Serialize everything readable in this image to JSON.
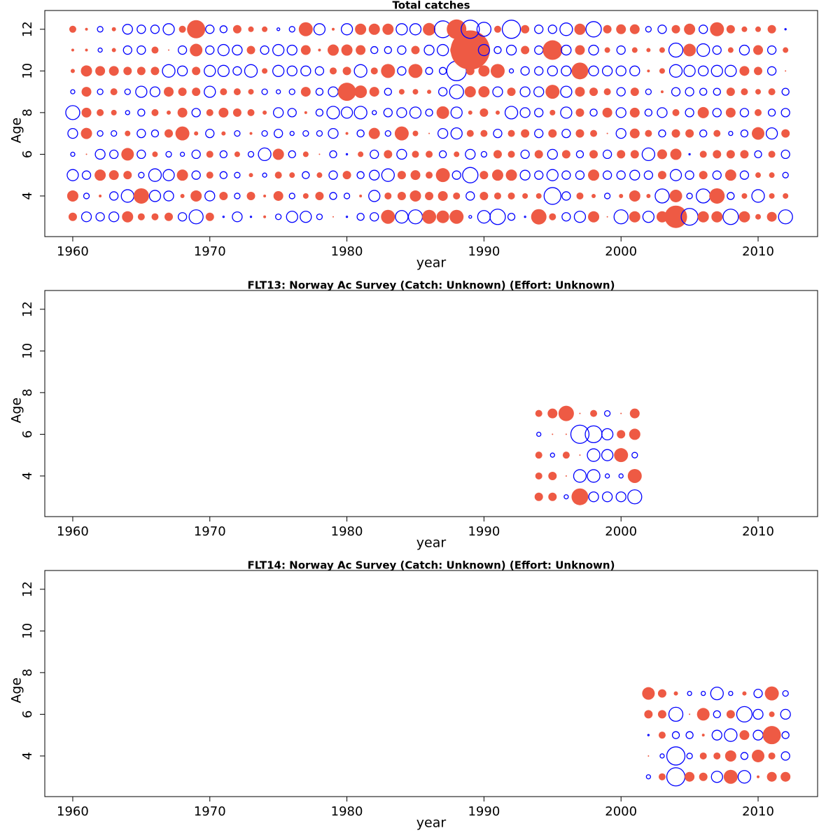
{
  "chart_data": [
    {
      "type": "bubble",
      "title": "Total catches",
      "x_label": "year",
      "y_label": "Age",
      "positive_color": "#ee5a44",
      "negative_color": "#0000ff",
      "xlim": [
        1957.96,
        2014.34
      ],
      "xticks": [
        1960,
        1970,
        1980,
        1990,
        2000,
        2010
      ],
      "ylim": [
        2.05,
        12.9
      ],
      "yticks": [
        4,
        6,
        8,
        10,
        12
      ],
      "x": [
        1960,
        1961,
        1962,
        1963,
        1964,
        1965,
        1966,
        1967,
        1968,
        1969,
        1970,
        1971,
        1972,
        1973,
        1974,
        1975,
        1976,
        1977,
        1978,
        1979,
        1980,
        1981,
        1982,
        1983,
        1984,
        1985,
        1986,
        1987,
        1988,
        1989,
        1990,
        1991,
        1992,
        1993,
        1994,
        1995,
        1996,
        1997,
        1998,
        1999,
        2000,
        2001,
        2002,
        2003,
        2004,
        2005,
        2006,
        2007,
        2008,
        2009,
        2010,
        2011,
        2012
      ],
      "y": [
        3,
        4,
        5,
        6,
        7,
        8,
        9,
        10,
        11,
        12
      ],
      "values": [
        [
          0.6,
          -0.7,
          -0.6,
          -0.7,
          0.8,
          0.5,
          0.5,
          0.6,
          -0.6,
          -1.0,
          0.6,
          -0.1,
          -0.7,
          -0.1,
          0.2,
          -0.4,
          -0.8,
          -0.8,
          -0.4,
          0.1,
          -0.1,
          -0.5,
          -0.6,
          1.0,
          -0.9,
          -1.0,
          1.0,
          0.9,
          1.0,
          -0.2,
          -0.9,
          -1.1,
          -0.5,
          -0.1,
          1.1,
          0.5,
          -0.6,
          -0.8,
          0.8,
          0.1,
          -1.0,
          0.8,
          -0.8,
          0.8,
          1.6,
          -1.2,
          0.8,
          0.8,
          -1.1,
          0.8,
          0.4,
          0.7,
          -1.0
        ],
        [
          0.8,
          -0.4,
          0.2,
          -0.6,
          -0.9,
          1.1,
          -0.8,
          -0.7,
          0.3,
          0.8,
          -0.7,
          0.6,
          -0.4,
          0.6,
          0.2,
          0.7,
          -0.4,
          0.4,
          0.6,
          -0.5,
          -0.4,
          0.2,
          -0.8,
          0.5,
          0.6,
          0.8,
          0.6,
          0.7,
          0.5,
          -0.6,
          0.6,
          0.5,
          0.5,
          0.4,
          0.4,
          -1.2,
          -0.6,
          0.5,
          0.3,
          -0.4,
          0.3,
          0.8,
          0.3,
          -1.0,
          0.9,
          -0.4,
          -1.0,
          1.1,
          -0.5,
          0.4,
          -0.9,
          0.4,
          0.4
        ],
        [
          -0.8,
          -0.6,
          0.8,
          0.7,
          0.6,
          -0.4,
          -0.9,
          -0.8,
          0.8,
          -0.6,
          0.5,
          -0.5,
          -0.4,
          0.3,
          -0.3,
          0.5,
          0.4,
          -0.5,
          0.4,
          -0.6,
          0.6,
          -0.5,
          -0.7,
          -0.9,
          0.6,
          0.7,
          0.5,
          1.0,
          -0.6,
          -1.1,
          0.6,
          0.8,
          0.8,
          -0.7,
          -0.6,
          -0.8,
          -0.6,
          -0.6,
          0.8,
          -0.6,
          -0.6,
          -0.7,
          -0.6,
          0.6,
          -0.8,
          -0.6,
          0.6,
          -0.6,
          0.8,
          -0.6,
          0.4,
          0.4,
          -0.4
        ],
        [
          -0.3,
          0.1,
          -0.7,
          -0.6,
          0.9,
          -0.6,
          0.4,
          -0.4,
          -0.3,
          -0.6,
          0.5,
          -0.5,
          0.4,
          -0.4,
          -0.9,
          0.8,
          -0.5,
          0.4,
          0.1,
          -0.5,
          -0.1,
          0.4,
          -0.6,
          0.6,
          -0.7,
          0.5,
          0.5,
          -0.5,
          0.4,
          -0.7,
          -0.4,
          0.6,
          0.5,
          -0.6,
          0.6,
          -0.7,
          0.6,
          -0.5,
          0.6,
          -0.6,
          0.6,
          0.6,
          -0.9,
          0.7,
          0.8,
          -0.1,
          0.5,
          0.6,
          0.6,
          0.6,
          -0.5,
          0.5,
          -0.6
        ],
        [
          -0.7,
          0.8,
          -0.4,
          -0.4,
          0.4,
          -0.6,
          -0.5,
          0.6,
          1.0,
          0.3,
          -0.6,
          0.3,
          -0.4,
          0.2,
          -0.4,
          -0.6,
          -0.3,
          -0.4,
          -0.4,
          -0.7,
          0.2,
          -0.5,
          0.8,
          -0.4,
          1.0,
          0.4,
          0.1,
          -0.7,
          -0.8,
          0.5,
          0.5,
          -0.6,
          0.5,
          0.6,
          -0.6,
          0.6,
          -0.6,
          0.6,
          0.5,
          0.1,
          -0.7,
          0.7,
          0.5,
          -0.5,
          0.6,
          0.6,
          -0.5,
          0.5,
          -0.3,
          -0.5,
          0.9,
          -0.8,
          0.6
        ],
        [
          -1.0,
          0.7,
          0.5,
          0.4,
          -0.3,
          -0.5,
          0.5,
          0.3,
          0.7,
          -0.6,
          0.5,
          0.7,
          0.6,
          0.5,
          0.3,
          -0.7,
          -0.6,
          0.2,
          -0.5,
          -0.9,
          -0.8,
          -0.9,
          -0.3,
          -0.6,
          -0.7,
          -0.8,
          -0.5,
          0.9,
          -0.8,
          0.3,
          0.6,
          0.3,
          -0.9,
          -0.7,
          -0.6,
          0.4,
          -0.8,
          0.6,
          -0.5,
          0.7,
          -0.7,
          0.7,
          -0.5,
          -0.7,
          0.5,
          -0.6,
          0.8,
          -0.6,
          0.7,
          -0.6,
          0.5,
          -0.5,
          -0.6
        ],
        [
          -0.3,
          0.7,
          -0.4,
          0.5,
          -0.4,
          -0.8,
          -0.7,
          0.7,
          0.6,
          0.6,
          -0.8,
          0.5,
          0.5,
          0.4,
          -0.4,
          -0.3,
          -0.4,
          0.7,
          -0.5,
          -0.7,
          1.3,
          0.9,
          0.7,
          -0.5,
          0.4,
          0.4,
          0.3,
          -0.6,
          -1.0,
          0.8,
          0.8,
          -0.7,
          0.6,
          -0.7,
          -0.7,
          1.0,
          -0.8,
          0.7,
          0.6,
          0.5,
          -0.6,
          0.6,
          -0.4,
          0.2,
          -0.6,
          -0.6,
          -0.5,
          -0.5,
          0.6,
          0.5,
          0.4,
          0.5,
          -0.5
        ],
        [
          0.3,
          0.8,
          0.7,
          0.7,
          0.6,
          0.6,
          0.6,
          -0.9,
          -0.7,
          0.6,
          -0.8,
          -0.8,
          -0.6,
          -0.9,
          0.4,
          -0.8,
          -0.7,
          -0.7,
          -0.6,
          0.5,
          0.6,
          -0.9,
          0.5,
          1.0,
          -0.6,
          1.0,
          -0.5,
          -0.5,
          -1.4,
          0.6,
          0.8,
          1.0,
          -0.3,
          -0.6,
          -0.6,
          -0.7,
          -0.7,
          1.2,
          -0.7,
          -0.7,
          -0.7,
          -0.7,
          0.2,
          0.4,
          -0.9,
          -0.8,
          -0.7,
          -0.8,
          -0.8,
          0.7,
          0.6,
          -0.6,
          0.1
        ],
        [
          0.2,
          0.2,
          -0.3,
          0.3,
          -0.6,
          -0.6,
          0.5,
          0.1,
          -0.6,
          0.9,
          -0.6,
          -0.8,
          -0.7,
          0.6,
          -0.6,
          -0.8,
          -0.7,
          0.7,
          0.2,
          0.8,
          0.8,
          0.7,
          -0.5,
          -0.5,
          -0.6,
          0.6,
          -0.7,
          -0.8,
          0.9,
          2.8,
          -0.8,
          -0.5,
          -0.7,
          0.6,
          -0.6,
          1.4,
          -0.7,
          0.7,
          -0.7,
          0.4,
          -0.6,
          0.4,
          0.3,
          0.4,
          -1.0,
          0.9,
          -0.9,
          -0.6,
          0.4,
          -0.7,
          0.7,
          -0.6,
          0.4
        ],
        [
          0.5,
          0.2,
          -0.4,
          0.3,
          -0.7,
          -0.6,
          -0.6,
          -0.8,
          0.5,
          1.3,
          -0.6,
          -0.5,
          0.6,
          0.4,
          0.4,
          -0.2,
          -0.4,
          1.0,
          -0.8,
          0.2,
          -0.8,
          0.8,
          0.8,
          0.8,
          -0.8,
          -0.8,
          0.9,
          -1.2,
          1.4,
          -1.3,
          -1.0,
          0.5,
          -1.3,
          0.6,
          -0.6,
          -0.6,
          -0.9,
          0.8,
          -1.1,
          0.6,
          0.7,
          0.7,
          -0.4,
          -0.6,
          0.6,
          0.8,
          -0.6,
          1.0,
          0.6,
          0.4,
          0.4,
          0.6,
          -0.1
        ]
      ]
    },
    {
      "type": "bubble",
      "title": "FLT13: Norway Ac Survey (Catch: Unknown) (Effort: Unknown)",
      "x_label": "year",
      "y_label": "Age",
      "positive_color": "#ee5a44",
      "negative_color": "#0000ff",
      "xlim": [
        1957.96,
        2014.34
      ],
      "xticks": [
        1960,
        1970,
        1980,
        1990,
        2000,
        2010
      ],
      "ylim": [
        2.05,
        12.9
      ],
      "yticks": [
        4,
        6,
        8,
        10,
        12
      ],
      "x": [
        1994,
        1995,
        1996,
        1997,
        1998,
        1999,
        2000,
        2001
      ],
      "y": [
        3,
        4,
        5,
        6,
        7
      ],
      "values": [
        [
          0.6,
          0.6,
          -0.3,
          1.2,
          -0.7,
          -0.7,
          -0.7,
          -1.0
        ],
        [
          0.5,
          0.6,
          0.1,
          -0.9,
          -0.9,
          -0.3,
          -0.3,
          1.0
        ],
        [
          0.5,
          -0.3,
          0.5,
          0.1,
          -0.9,
          -0.8,
          1.0,
          -0.4
        ],
        [
          -0.3,
          0.1,
          0.1,
          -1.3,
          -1.2,
          -0.8,
          0.6,
          0.8
        ],
        [
          0.5,
          0.7,
          1.1,
          0.1,
          0.5,
          -0.4,
          0.1,
          0.7
        ]
      ]
    },
    {
      "type": "bubble",
      "title": "FLT14: Norway Ac Survey (Catch: Unknown) (Effort: Unknown)",
      "x_label": "year",
      "y_label": "Age",
      "positive_color": "#ee5a44",
      "negative_color": "#0000ff",
      "xlim": [
        1957.96,
        2014.34
      ],
      "xticks": [
        1960,
        1970,
        1980,
        1990,
        2000,
        2010
      ],
      "ylim": [
        2.05,
        12.9
      ],
      "yticks": [
        4,
        6,
        8,
        10,
        12
      ],
      "x": [
        2002,
        2003,
        2004,
        2005,
        2006,
        2007,
        2008,
        2009,
        2010,
        2011,
        2012
      ],
      "y": [
        3,
        4,
        5,
        6,
        7
      ],
      "values": [
        [
          -0.3,
          0.5,
          -1.3,
          0.7,
          0.6,
          -0.8,
          1.0,
          -0.9,
          0.2,
          0.7,
          0.7
        ],
        [
          0.1,
          -0.3,
          -1.3,
          -0.4,
          0.5,
          0.5,
          0.8,
          -0.5,
          0.9,
          0.5,
          -0.6
        ],
        [
          -0.1,
          0.5,
          -0.5,
          -0.5,
          0.2,
          -0.7,
          -0.9,
          0.7,
          -0.7,
          1.3,
          -0.5
        ],
        [
          0.6,
          0.6,
          -1.0,
          0.1,
          0.9,
          -0.5,
          0.6,
          -1.1,
          -0.7,
          0.4,
          -0.7
        ],
        [
          0.9,
          0.6,
          0.3,
          -0.3,
          -0.3,
          -0.9,
          -0.3,
          0.3,
          -0.6,
          1.0,
          -0.4
        ]
      ]
    }
  ]
}
